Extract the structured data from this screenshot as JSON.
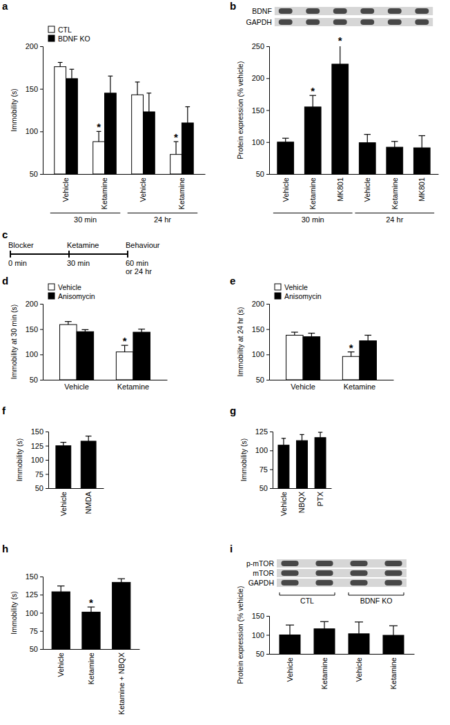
{
  "chart_data": [
    {
      "type": "bar",
      "title": "a",
      "y_label": "Immobility (s)",
      "categories": [
        "Vehicle",
        "Ketamine",
        "Vehicle",
        "Ketamine"
      ],
      "groups": [
        "30 min",
        "24 hr"
      ],
      "series": [
        {
          "name": "CTL",
          "color": "#ffffff",
          "values": [
            176,
            88,
            143,
            73
          ],
          "errors": [
            5,
            12,
            15,
            15
          ]
        },
        {
          "name": "BDNF KO",
          "color": "#000000",
          "values": [
            162,
            145,
            123,
            110
          ],
          "errors": [
            11,
            20,
            22,
            19
          ]
        }
      ],
      "ylim": [
        50,
        200
      ],
      "yticks": [
        50,
        100,
        150,
        200
      ],
      "legend": "upper left",
      "annotations": [
        {
          "text": "*",
          "series": 0,
          "index": 1
        },
        {
          "text": "*",
          "series": 0,
          "index": 3
        }
      ]
    },
    {
      "type": "bar",
      "title": "b",
      "y_label": "Protein expression (% vehicle)",
      "categories": [
        "Vehicle",
        "Ketamine",
        "MK801",
        "Vehicle",
        "Ketamine",
        "MK801"
      ],
      "groups": [
        "30 min",
        "24 hr"
      ],
      "blot_rows": [
        "BDNF",
        "GAPDH"
      ],
      "series": [
        {
          "color": "#000000",
          "values": [
            100,
            155,
            222,
            99,
            92,
            91
          ],
          "errors": [
            6,
            18,
            30,
            13,
            9,
            19
          ]
        }
      ],
      "ylim": [
        50,
        250
      ],
      "yticks": [
        50,
        100,
        150,
        200,
        250
      ],
      "annotations": [
        {
          "text": "*",
          "series": 0,
          "index": 1
        },
        {
          "text": "*",
          "series": 0,
          "index": 2
        }
      ]
    },
    {
      "type": "bar",
      "title": "d",
      "y_label": "Immobility at 30 min (s)",
      "categories": [
        "Vehicle",
        "Ketamine"
      ],
      "series": [
        {
          "name": "Vehicle",
          "color": "#ffffff",
          "values": [
            159,
            105
          ],
          "errors": [
            6,
            13
          ]
        },
        {
          "name": "Anisomycin",
          "color": "#000000",
          "values": [
            145,
            144
          ],
          "errors": [
            4,
            6
          ]
        }
      ],
      "ylim": [
        50,
        200
      ],
      "yticks": [
        50,
        100,
        150,
        200
      ],
      "legend": "upper left",
      "annotations": [
        {
          "text": "*",
          "series": 0,
          "index": 1
        }
      ]
    },
    {
      "type": "bar",
      "title": "e",
      "y_label": "Immobility at 24 hr (s)",
      "categories": [
        "Vehicle",
        "Ketamine"
      ],
      "series": [
        {
          "name": "Vehicle",
          "color": "#ffffff",
          "values": [
            138,
            96
          ],
          "errors": [
            6,
            9
          ]
        },
        {
          "name": "Anisomycin",
          "color": "#000000",
          "values": [
            135,
            127
          ],
          "errors": [
            7,
            11
          ]
        }
      ],
      "ylim": [
        50,
        200
      ],
      "yticks": [
        50,
        100,
        150,
        200
      ],
      "legend": "upper left",
      "annotations": [
        {
          "text": "*",
          "series": 0,
          "index": 1
        }
      ]
    },
    {
      "type": "bar",
      "title": "f",
      "y_label": "Immobility (s)",
      "categories": [
        "Vehicle",
        "NMDA"
      ],
      "series": [
        {
          "color": "#000000",
          "values": [
            125,
            133
          ],
          "errors": [
            6,
            9
          ]
        }
      ],
      "ylim": [
        50,
        150
      ],
      "yticks": [
        50,
        75,
        100,
        125,
        150
      ]
    },
    {
      "type": "bar",
      "title": "g",
      "y_label": "Immobility (s)",
      "categories": [
        "Vehicle",
        "NBQX",
        "PTX"
      ],
      "series": [
        {
          "color": "#000000",
          "values": [
            107,
            113,
            117
          ],
          "errors": [
            9,
            8,
            7
          ]
        }
      ],
      "ylim": [
        50,
        125
      ],
      "yticks": [
        50,
        75,
        100,
        125
      ]
    },
    {
      "type": "bar",
      "title": "h",
      "y_label": "Immobility (s)",
      "categories": [
        "Vehicle",
        "Ketamine",
        "Ketamine + NBQX"
      ],
      "series": [
        {
          "color": "#000000",
          "values": [
            129,
            101,
            142
          ],
          "errors": [
            8,
            7,
            5
          ]
        }
      ],
      "ylim": [
        50,
        150
      ],
      "yticks": [
        50,
        75,
        100,
        125,
        150
      ],
      "annotations": [
        {
          "text": "*",
          "series": 0,
          "index": 1
        }
      ]
    },
    {
      "type": "bar",
      "title": "i",
      "y_label": "Protein expression (% vehicle)",
      "categories": [
        "Vehicle",
        "Ketamine",
        "Vehicle",
        "Ketamine"
      ],
      "blot_rows": [
        "p-mTOR",
        "mTOR",
        "GAPDH"
      ],
      "blot_groups": [
        "CTL",
        "BDNF KO"
      ],
      "series": [
        {
          "color": "#000000",
          "values": [
            100,
            116,
            103,
            99
          ],
          "errors": [
            26,
            19,
            31,
            25
          ]
        }
      ],
      "ylim": [
        50,
        150
      ],
      "yticks": [
        50,
        100,
        150
      ]
    }
  ],
  "diagram": {
    "title": "c",
    "steps": [
      "Blocker",
      "Ketamine",
      "Behaviour"
    ],
    "times": [
      [
        "0 min"
      ],
      [
        "30 min"
      ],
      [
        "60 min",
        "or 24 hr"
      ]
    ]
  }
}
